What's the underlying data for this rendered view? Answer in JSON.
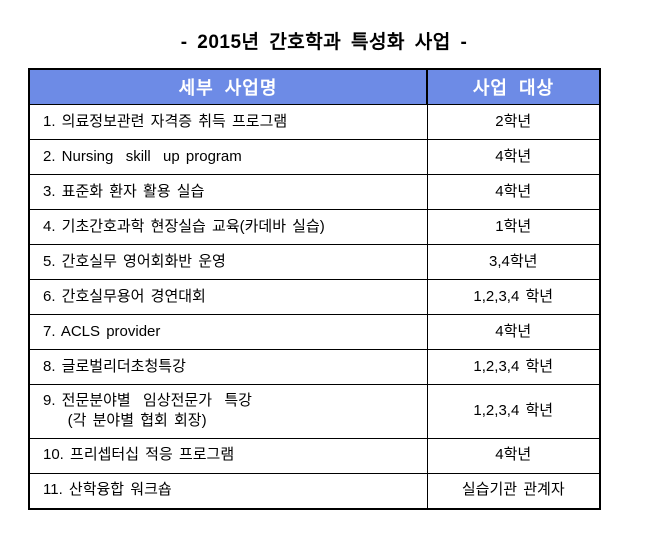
{
  "page": {
    "title": "- 2015년 간호학과 특성화 사업 -"
  },
  "table": {
    "columns": [
      "세부 사업명",
      "사업 대상"
    ],
    "rows": [
      {
        "name": "1. 의료정보관련 자격증 취득 프로그램",
        "target": "2학년"
      },
      {
        "name": "2. Nursing  skill  up program",
        "target": "4학년"
      },
      {
        "name": "3. 표준화 환자 활용 실습",
        "target": "4학년"
      },
      {
        "name": "4. 기초간호과학 현장실습 교육(카데바 실습)",
        "target": "1학년"
      },
      {
        "name": "5. 간호실무 영어회화반 운영",
        "target": "3,4학년"
      },
      {
        "name": "6. 간호실무용어 경연대회",
        "target": "1,2,3,4 학년"
      },
      {
        "name": "7. ACLS provider",
        "target": "4학년"
      },
      {
        "name": "8. 글로벌리더초청특강",
        "target": "1,2,3,4 학년"
      },
      {
        "name": "9. 전문분야별  임상전문가  특강\n    (각 분야별 협회 회장)",
        "target": "1,2,3,4 학년"
      },
      {
        "name": "10. 프리셉터십 적응 프로그램",
        "target": "4학년"
      },
      {
        "name": "11. 산학융합 워크숍",
        "target": "실습기관 관계자"
      }
    ]
  },
  "colors": {
    "header_bg": "#6D8BE6",
    "header_text": "#FFFFFF",
    "border": "#000000",
    "body_text": "#000000",
    "page_bg": "#FFFFFF"
  }
}
